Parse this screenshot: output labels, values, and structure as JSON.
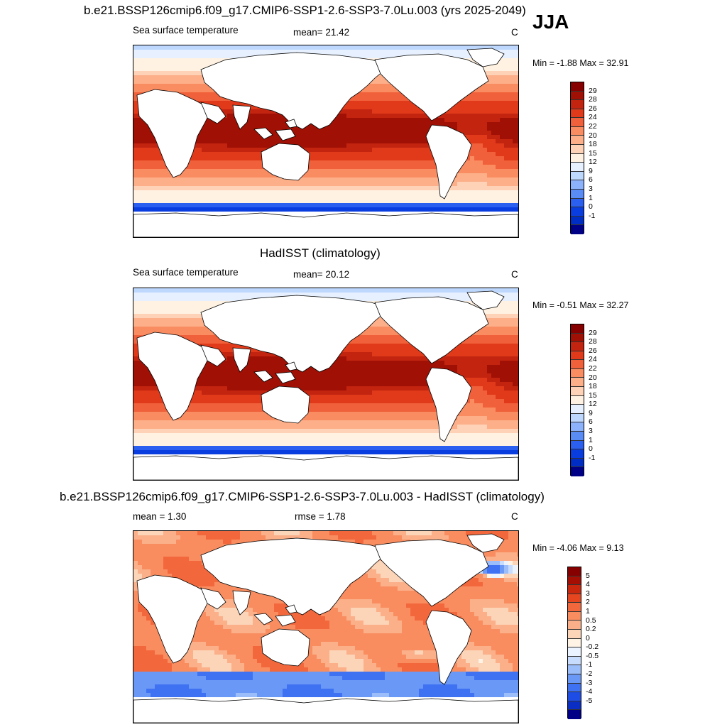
{
  "season": "JJA",
  "colors": {
    "abs_scale": [
      "#000086",
      "#002ec4",
      "#0a3de0",
      "#2a5ff0",
      "#5a8cf5",
      "#8cb2fb",
      "#bdd7fd",
      "#e6f0ff",
      "#fff2e2",
      "#fdd2b6",
      "#fcaf89",
      "#fa8c62",
      "#f0603a",
      "#e03a1a",
      "#c22410",
      "#a01004",
      "#860000"
    ],
    "diff_scale": [
      "#000086",
      "#0a2ec4",
      "#1d4de4",
      "#3e72f2",
      "#6a98f6",
      "#9bbdfa",
      "#c8dcfd",
      "#eaf3ff",
      "#fff3e6",
      "#fcd4b8",
      "#fbb08a",
      "#f98d60",
      "#f2683c",
      "#e6461f",
      "#c9280e",
      "#a50e03",
      "#860000"
    ]
  },
  "panel1": {
    "title": "b.e21.BSSP126cmip6.f09_g17.CMIP6-SSP1-2.6-SSP3-7.0Lu.003 (yrs 2025-2049)",
    "left": "Sea surface temperature",
    "mean": "mean=  21.42",
    "units": "C",
    "minmax": "Min =  -1.88 Max =  32.91",
    "levels": [
      "29",
      "28",
      "26",
      "24",
      "22",
      "20",
      "18",
      "15",
      "12",
      "9",
      "6",
      "3",
      "1",
      "0",
      "-1"
    ]
  },
  "panel2": {
    "title": "HadISST (climatology)",
    "left": "Sea surface temperature",
    "mean": "mean=  20.12",
    "units": "C",
    "minmax": "Min =  -0.51 Max =  32.27",
    "levels": [
      "29",
      "28",
      "26",
      "24",
      "22",
      "20",
      "18",
      "15",
      "12",
      "9",
      "6",
      "3",
      "1",
      "0",
      "-1"
    ]
  },
  "panel3": {
    "title": "b.e21.BSSP126cmip6.f09_g17.CMIP6-SSP1-2.6-SSP3-7.0Lu.003 - HadISST (climatology)",
    "left": "mean =   1.30",
    "mean": "rmse =   1.78",
    "units": "C",
    "minmax": "Min =  -4.06 Max =   9.13",
    "levels": [
      "5",
      "4",
      "3",
      "2",
      "1",
      "0.5",
      "0.2",
      "0",
      "-0.2",
      "-0.5",
      "-1",
      "-2",
      "-3",
      "-4",
      "-5"
    ]
  }
}
